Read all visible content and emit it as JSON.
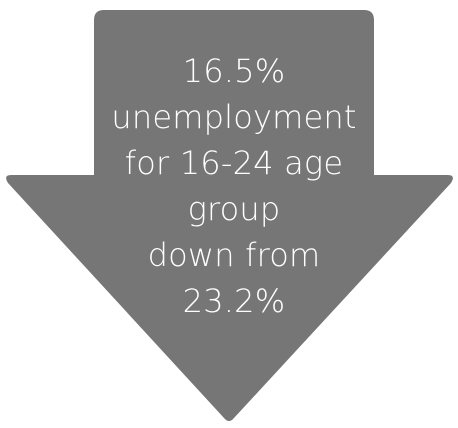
{
  "graphic": {
    "type": "down-arrow",
    "fill_color": "#767676",
    "text_color": "#ffffff",
    "lines": [
      "16.5%",
      "unemployment",
      "for 16-24 age",
      "group",
      "down from",
      "23.2%"
    ]
  }
}
